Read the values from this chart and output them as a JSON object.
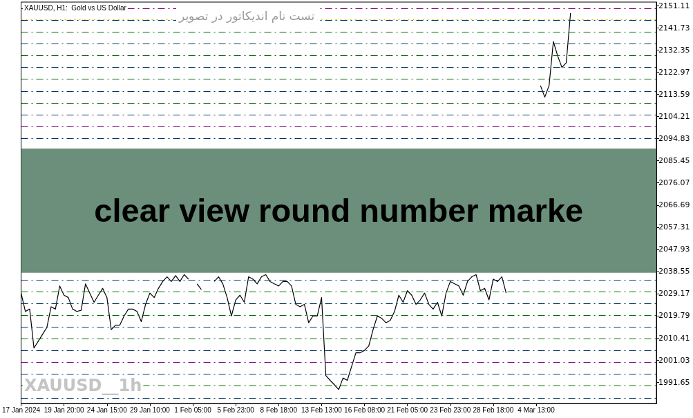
{
  "chart_data": {
    "type": "line",
    "title": "تست نام اندیکاتور در تصویر",
    "subtitle": "XAUUSD, H1:  Gold vs US Dollar",
    "annotations": [
      "XAUUSD__1h"
    ],
    "categories": [
      "17 Jan 2024",
      null,
      null,
      null,
      null,
      null,
      null,
      null,
      null,
      null,
      "19 Jan 20:00",
      null,
      null,
      null,
      null,
      null,
      null,
      null,
      null,
      null,
      "24 Jan 15:00",
      null,
      null,
      null,
      null,
      null,
      null,
      null,
      null,
      null,
      "29 Jan 10:00",
      null,
      null,
      null,
      null,
      null,
      null,
      null,
      null,
      null,
      "1 Feb 05:00",
      null,
      null,
      null,
      null,
      null,
      null,
      null,
      null,
      null,
      "5 Feb 23:00",
      null,
      null,
      null,
      null,
      null,
      null,
      null,
      null,
      null,
      "8 Feb 18:00",
      null,
      null,
      null,
      null,
      null,
      null,
      null,
      null,
      null,
      "13 Feb 13:00",
      null,
      null,
      null,
      null,
      null,
      null,
      null,
      null,
      null,
      "16 Feb 08:00",
      null,
      null,
      null,
      null,
      null,
      null,
      null,
      null,
      null,
      "21 Feb 05:00",
      null,
      null,
      null,
      null,
      null,
      null,
      null,
      null,
      null,
      "23 Feb 23:00",
      null,
      null,
      null,
      null,
      null,
      null,
      null,
      null,
      null,
      "28 Feb 18:00",
      null,
      null,
      null,
      null,
      null,
      null,
      null,
      null,
      null,
      "4 Mar 13:00",
      null,
      null,
      null,
      null,
      null,
      null,
      null,
      null,
      null,
      null,
      null,
      null,
      null,
      null,
      null,
      null,
      null,
      null,
      null,
      null,
      null,
      null,
      null,
      null,
      null,
      null,
      null,
      null
    ],
    "series": [
      {
        "color": "#000000",
        "values": [
          2029.4,
          2021.6,
          2022.6,
          2006.1,
          2009.0,
          2011.9,
          2014.8,
          2023.6,
          2022.6,
          2032.4,
          2028.5,
          2027.5,
          2022.6,
          2021.6,
          2022.1,
          2033.3,
          2029.4,
          2025.5,
          2028.5,
          2031.4,
          2027.5,
          2013.9,
          2015.8,
          2015.8,
          2019.7,
          2022.6,
          2022.6,
          2021.6,
          2017.3,
          2024.6,
          2029.4,
          2027.5,
          2031.4,
          2034.3,
          2036.3,
          2034.3,
          2036.8,
          2034.3,
          2037.2,
          2035.3,
          null,
          2033.3,
          2030.9,
          null,
          null,
          2034.3,
          2036.3,
          2033.3,
          2027.5,
          2019.7,
          2026.5,
          2028.5,
          2025.5,
          2036.3,
          2035.3,
          2033.3,
          2036.3,
          2037.2,
          2034.3,
          2033.3,
          2032.4,
          2034.3,
          2034.3,
          2032.4,
          2024.6,
          2023.6,
          2024.6,
          2016.8,
          2019.7,
          2019.7,
          2027.5,
          1994.4,
          1992.4,
          1990.5,
          1988.5,
          1993.4,
          1992.4,
          1998.3,
          2004.1,
          2004.1,
          2005.1,
          2007.0,
          2013.9,
          2019.7,
          2018.7,
          2016.8,
          2017.8,
          2021.6,
          2028.5,
          2025.5,
          2030.4,
          2028.5,
          2024.6,
          2026.5,
          2029.4,
          2024.6,
          2022.6,
          2025.5,
          2019.7,
          2029.4,
          2034.3,
          2033.3,
          2032.4,
          2028.5,
          2034.3,
          2036.3,
          2037.2,
          2030.4,
          2031.4,
          2026.5,
          2035.3,
          2034.3,
          2036.3,
          2029.4,
          null,
          null,
          null,
          null,
          null,
          null,
          null,
          2117.3,
          2112.4,
          2117.3,
          2136.0,
          2129.9,
          2125.0,
          2127.0,
          2148.0,
          null,
          null,
          null,
          null,
          null,
          null,
          null,
          null,
          null,
          null,
          null,
          null,
          null,
          null,
          null,
          null,
          null,
          null,
          null,
          null
        ]
      }
    ],
    "marker": "none",
    "ylim": [
      1982.6,
      2152.7
    ],
    "yticks": [
      1991.65,
      2001.03,
      2010.41,
      2019.79,
      2029.17,
      2038.55,
      2047.93,
      2057.31,
      2066.69,
      2076.07,
      2085.45,
      2094.83,
      2104.21,
      2113.59,
      2122.97,
      2132.35,
      2141.73,
      2151.11
    ],
    "ref_lines": [
      {
        "axis": "y",
        "value": 2150,
        "color": "#800080",
        "line_style": "dashed"
      },
      {
        "axis": "y",
        "value": 2145.3,
        "color": "#e6b800",
        "line_style": "dotted"
      },
      {
        "axis": "y",
        "value": 2145,
        "color": "#003366",
        "line_style": "dashed"
      },
      {
        "axis": "y",
        "value": 2140,
        "color": "#006400",
        "line_style": "dashed"
      },
      {
        "axis": "y",
        "value": 2135,
        "color": "#003366",
        "line_style": "dashed"
      },
      {
        "axis": "y",
        "value": 2130,
        "color": "#006400",
        "line_style": "dashed"
      },
      {
        "axis": "y",
        "value": 2125,
        "color": "#003366",
        "line_style": "dashed"
      },
      {
        "axis": "y",
        "value": 2120,
        "color": "#006400",
        "line_style": "dashed"
      },
      {
        "axis": "y",
        "value": 2115,
        "color": "#003366",
        "line_style": "dashed"
      },
      {
        "axis": "y",
        "value": 2110,
        "color": "#006400",
        "line_style": "dashed"
      },
      {
        "axis": "y",
        "value": 2105,
        "color": "#003366",
        "line_style": "dashed"
      },
      {
        "axis": "y",
        "value": 2100,
        "color": "#800080",
        "line_style": "dashed"
      },
      {
        "axis": "y",
        "value": 2095,
        "color": "#003366",
        "line_style": "dashed"
      },
      {
        "axis": "y",
        "value": 2035,
        "color": "#003366",
        "line_style": "dashed"
      },
      {
        "axis": "y",
        "value": 2030,
        "color": "#006400",
        "line_style": "dashed"
      },
      {
        "axis": "y",
        "value": 2025,
        "color": "#003366",
        "line_style": "dashed"
      },
      {
        "axis": "y",
        "value": 2020,
        "color": "#006400",
        "line_style": "dashed"
      },
      {
        "axis": "y",
        "value": 2015,
        "color": "#003366",
        "line_style": "dashed"
      },
      {
        "axis": "y",
        "value": 2010,
        "color": "#006400",
        "line_style": "dashed"
      },
      {
        "axis": "y",
        "value": 2005,
        "color": "#003366",
        "line_style": "dashed"
      },
      {
        "axis": "y",
        "value": 2000,
        "color": "#800080",
        "line_style": "dashed"
      },
      {
        "axis": "y",
        "value": 1995,
        "color": "#003366",
        "line_style": "dashed"
      },
      {
        "axis": "y",
        "value": 1990,
        "color": "#006400",
        "line_style": "dashed"
      },
      {
        "axis": "y",
        "value": 1985,
        "color": "#003366",
        "line_style": "dashed"
      }
    ],
    "bands": [
      {
        "axis": "y",
        "from": 2038.0,
        "to": 2090.6,
        "label": "clear view round number marke",
        "color": "#6b8f7a"
      }
    ]
  }
}
